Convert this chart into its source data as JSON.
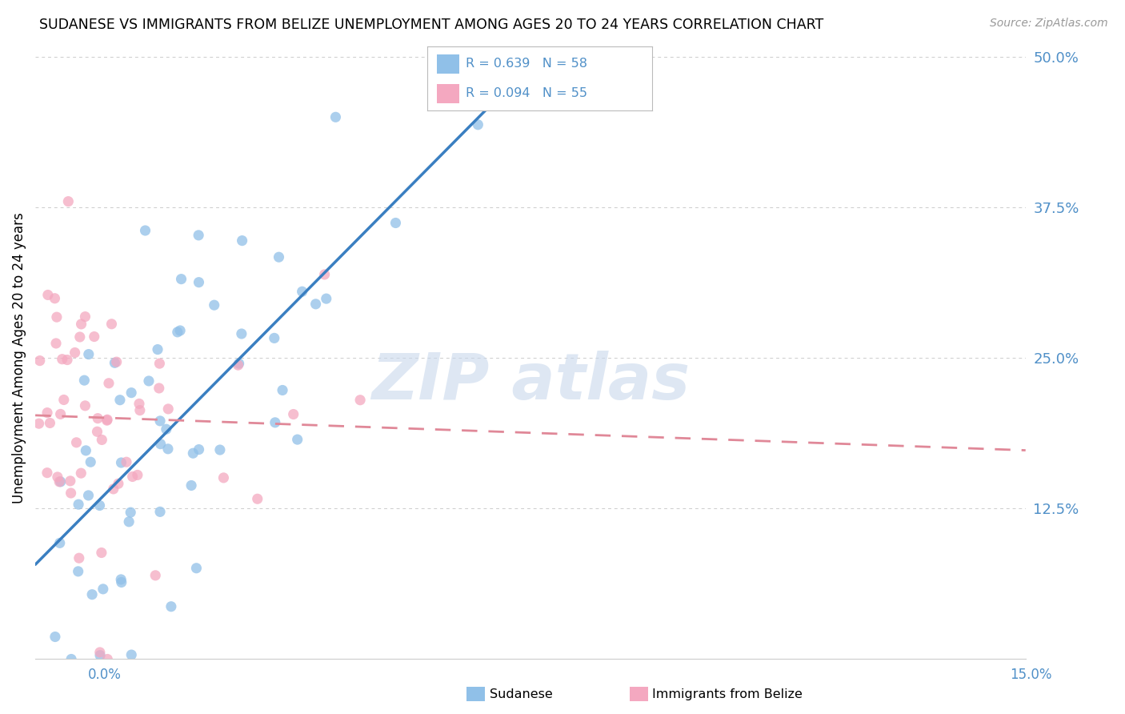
{
  "title": "SUDANESE VS IMMIGRANTS FROM BELIZE UNEMPLOYMENT AMONG AGES 20 TO 24 YEARS CORRELATION CHART",
  "source": "Source: ZipAtlas.com",
  "ylabel": "Unemployment Among Ages 20 to 24 years",
  "xlim": [
    0.0,
    0.15
  ],
  "ylim": [
    0.0,
    0.5
  ],
  "yticks": [
    0.0,
    0.125,
    0.25,
    0.375,
    0.5
  ],
  "ytick_labels": [
    "",
    "12.5%",
    "25.0%",
    "37.5%",
    "50.0%"
  ],
  "blue_dot_color": "#90c0e8",
  "pink_dot_color": "#f4a8c0",
  "blue_line_color": "#3a7fc1",
  "pink_line_color": "#e08898",
  "watermark_color": "#c8d8ec",
  "tick_label_color": "#5090c8",
  "sudanese_R": 0.639,
  "sudanese_N": 58,
  "belize_R": 0.094,
  "belize_N": 55
}
